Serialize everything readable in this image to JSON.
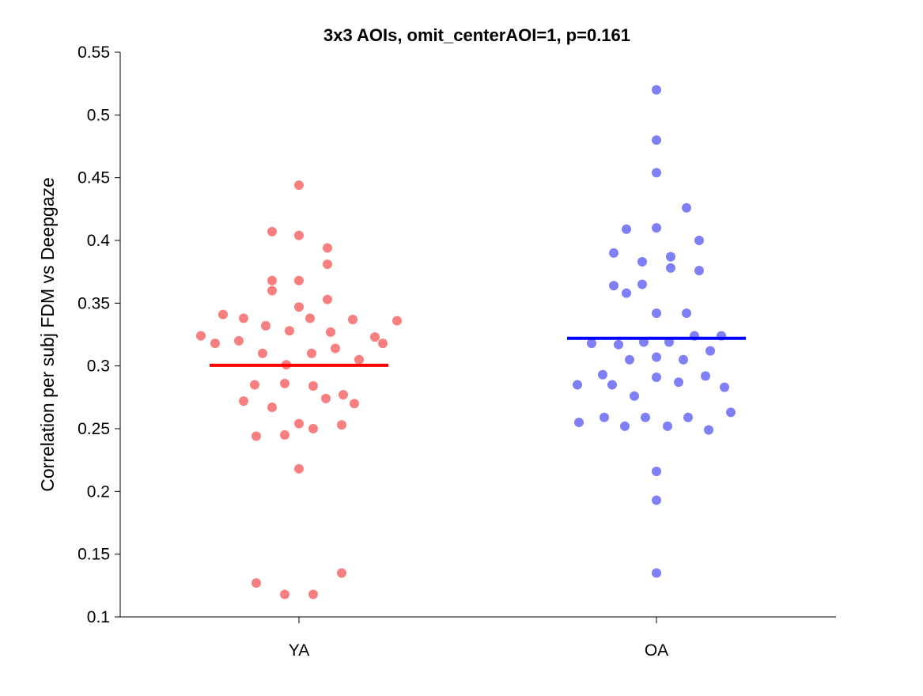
{
  "chart_data": {
    "type": "scatter",
    "title": "3x3 AOIs, omit_centerAOI=1, p=0.161",
    "xlabel": "",
    "ylabel": "Correlation per subj FDM vs Deepgaze",
    "categories": [
      "YA",
      "OA"
    ],
    "ylim": [
      0.1,
      0.55
    ],
    "yticks": [
      "0.1",
      "0.15",
      "0.2",
      "0.25",
      "0.3",
      "0.35",
      "0.4",
      "0.45",
      "0.5",
      "0.55"
    ],
    "grid": false,
    "legend": "none",
    "series": [
      {
        "category": "YA",
        "color": "#f77f7f",
        "mean_color": "#ff0000",
        "mean": 0.3005,
        "points": [
          {
            "jitter": 0.0,
            "y": 0.444
          },
          {
            "jitter": -0.17,
            "y": 0.407
          },
          {
            "jitter": 0.0,
            "y": 0.404
          },
          {
            "jitter": 0.18,
            "y": 0.394
          },
          {
            "jitter": 0.18,
            "y": 0.381
          },
          {
            "jitter": -0.17,
            "y": 0.368
          },
          {
            "jitter": 0.0,
            "y": 0.368
          },
          {
            "jitter": -0.17,
            "y": 0.36
          },
          {
            "jitter": 0.18,
            "y": 0.353
          },
          {
            "jitter": 0.0,
            "y": 0.347
          },
          {
            "jitter": -0.48,
            "y": 0.341
          },
          {
            "jitter": -0.35,
            "y": 0.338
          },
          {
            "jitter": 0.07,
            "y": 0.338
          },
          {
            "jitter": 0.34,
            "y": 0.337
          },
          {
            "jitter": 0.62,
            "y": 0.336
          },
          {
            "jitter": -0.21,
            "y": 0.332
          },
          {
            "jitter": -0.06,
            "y": 0.328
          },
          {
            "jitter": 0.2,
            "y": 0.327
          },
          {
            "jitter": -0.62,
            "y": 0.324
          },
          {
            "jitter": 0.48,
            "y": 0.323
          },
          {
            "jitter": -0.38,
            "y": 0.32
          },
          {
            "jitter": -0.53,
            "y": 0.318
          },
          {
            "jitter": 0.53,
            "y": 0.318
          },
          {
            "jitter": 0.23,
            "y": 0.314
          },
          {
            "jitter": -0.23,
            "y": 0.31
          },
          {
            "jitter": 0.08,
            "y": 0.31
          },
          {
            "jitter": 0.38,
            "y": 0.305
          },
          {
            "jitter": -0.08,
            "y": 0.301
          },
          {
            "jitter": -0.28,
            "y": 0.285
          },
          {
            "jitter": -0.09,
            "y": 0.286
          },
          {
            "jitter": 0.09,
            "y": 0.284
          },
          {
            "jitter": 0.28,
            "y": 0.277
          },
          {
            "jitter": -0.35,
            "y": 0.272
          },
          {
            "jitter": 0.17,
            "y": 0.274
          },
          {
            "jitter": -0.17,
            "y": 0.267
          },
          {
            "jitter": 0.35,
            "y": 0.27
          },
          {
            "jitter": 0.0,
            "y": 0.254
          },
          {
            "jitter": 0.27,
            "y": 0.253
          },
          {
            "jitter": 0.09,
            "y": 0.25
          },
          {
            "jitter": -0.09,
            "y": 0.245
          },
          {
            "jitter": -0.27,
            "y": 0.244
          },
          {
            "jitter": 0.0,
            "y": 0.218
          },
          {
            "jitter": 0.27,
            "y": 0.135
          },
          {
            "jitter": -0.27,
            "y": 0.127
          },
          {
            "jitter": -0.09,
            "y": 0.118
          },
          {
            "jitter": 0.09,
            "y": 0.118
          }
        ]
      },
      {
        "category": "OA",
        "color": "#7f7ff7",
        "mean_color": "#0000ff",
        "mean": 0.322,
        "points": [
          {
            "jitter": 0.0,
            "y": 0.52
          },
          {
            "jitter": 0.0,
            "y": 0.48
          },
          {
            "jitter": 0.0,
            "y": 0.454
          },
          {
            "jitter": 0.19,
            "y": 0.426
          },
          {
            "jitter": -0.19,
            "y": 0.409
          },
          {
            "jitter": 0.0,
            "y": 0.41
          },
          {
            "jitter": 0.27,
            "y": 0.4
          },
          {
            "jitter": -0.27,
            "y": 0.39
          },
          {
            "jitter": 0.09,
            "y": 0.387
          },
          {
            "jitter": -0.09,
            "y": 0.383
          },
          {
            "jitter": 0.09,
            "y": 0.378
          },
          {
            "jitter": 0.27,
            "y": 0.376
          },
          {
            "jitter": -0.27,
            "y": 0.364
          },
          {
            "jitter": -0.09,
            "y": 0.365
          },
          {
            "jitter": -0.19,
            "y": 0.358
          },
          {
            "jitter": 0.19,
            "y": 0.342
          },
          {
            "jitter": 0.0,
            "y": 0.342
          },
          {
            "jitter": 0.24,
            "y": 0.324
          },
          {
            "jitter": 0.41,
            "y": 0.324
          },
          {
            "jitter": -0.41,
            "y": 0.318
          },
          {
            "jitter": -0.24,
            "y": 0.317
          },
          {
            "jitter": -0.08,
            "y": 0.319
          },
          {
            "jitter": 0.08,
            "y": 0.319
          },
          {
            "jitter": 0.34,
            "y": 0.312
          },
          {
            "jitter": 0.0,
            "y": 0.307
          },
          {
            "jitter": -0.17,
            "y": 0.305
          },
          {
            "jitter": 0.17,
            "y": 0.305
          },
          {
            "jitter": -0.34,
            "y": 0.293
          },
          {
            "jitter": 0.31,
            "y": 0.292
          },
          {
            "jitter": 0.0,
            "y": 0.291
          },
          {
            "jitter": -0.5,
            "y": 0.285
          },
          {
            "jitter": -0.28,
            "y": 0.285
          },
          {
            "jitter": 0.14,
            "y": 0.287
          },
          {
            "jitter": 0.43,
            "y": 0.283
          },
          {
            "jitter": -0.14,
            "y": 0.276
          },
          {
            "jitter": 0.47,
            "y": 0.263
          },
          {
            "jitter": -0.33,
            "y": 0.259
          },
          {
            "jitter": -0.07,
            "y": 0.259
          },
          {
            "jitter": 0.2,
            "y": 0.259
          },
          {
            "jitter": -0.49,
            "y": 0.255
          },
          {
            "jitter": -0.2,
            "y": 0.252
          },
          {
            "jitter": 0.07,
            "y": 0.252
          },
          {
            "jitter": 0.33,
            "y": 0.249
          },
          {
            "jitter": 0.0,
            "y": 0.216
          },
          {
            "jitter": 0.0,
            "y": 0.193
          },
          {
            "jitter": 0.0,
            "y": 0.135
          }
        ]
      }
    ]
  }
}
